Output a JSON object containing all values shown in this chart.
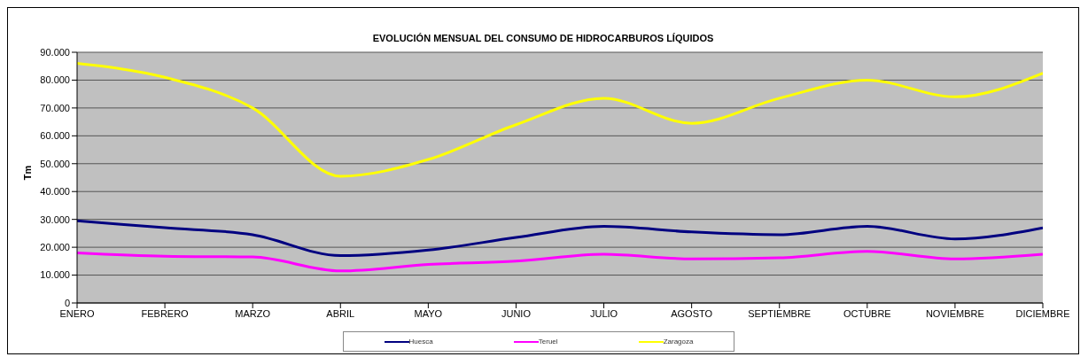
{
  "chart_data": {
    "type": "line",
    "title": "EVOLUCIÓN MENSUAL DEL CONSUMO DE HIDROCARBUROS LÍQUIDOS",
    "ylabel": "Tm",
    "categories": [
      "ENERO",
      "FEBRERO",
      "MARZO",
      "ABRIL",
      "MAYO",
      "JUNIO",
      "JULIO",
      "AGOSTO",
      "SEPTIEMBRE",
      "OCTUBRE",
      "NOVIEMBRE",
      "DICIEMBRE"
    ],
    "series": [
      {
        "name": "Huesca",
        "color": "#000080",
        "values": [
          29500,
          27000,
          24500,
          17000,
          19000,
          23500,
          27500,
          25500,
          24500,
          27500,
          23000,
          27000
        ]
      },
      {
        "name": "Teruel",
        "color": "#ff00ff",
        "values": [
          18000,
          16800,
          16500,
          11500,
          13800,
          15000,
          17500,
          15800,
          16200,
          18500,
          15800,
          17500
        ]
      },
      {
        "name": "Zaragoza",
        "color": "#ffff00",
        "values": [
          86000,
          81000,
          70000,
          45500,
          51500,
          64000,
          73500,
          64500,
          73500,
          80000,
          74000,
          82500
        ]
      }
    ],
    "ylim": [
      0,
      90000
    ],
    "yticks": [
      0,
      {
        "value": 10000,
        "label": "10.000"
      },
      {
        "value": 20000,
        "label": "20.000"
      },
      {
        "value": 30000,
        "label": "30.000"
      },
      {
        "value": 40000,
        "label": "40.000"
      },
      {
        "value": 50000,
        "label": "50.000"
      },
      {
        "value": 60000,
        "label": "60.000"
      },
      {
        "value": 70000,
        "label": "70.000"
      },
      {
        "value": 80000,
        "label": "80.000"
      },
      {
        "value": 90000,
        "label": "90.000"
      }
    ],
    "grid": "y",
    "legend": "bottom",
    "marker": "none",
    "line_style": "solid"
  }
}
